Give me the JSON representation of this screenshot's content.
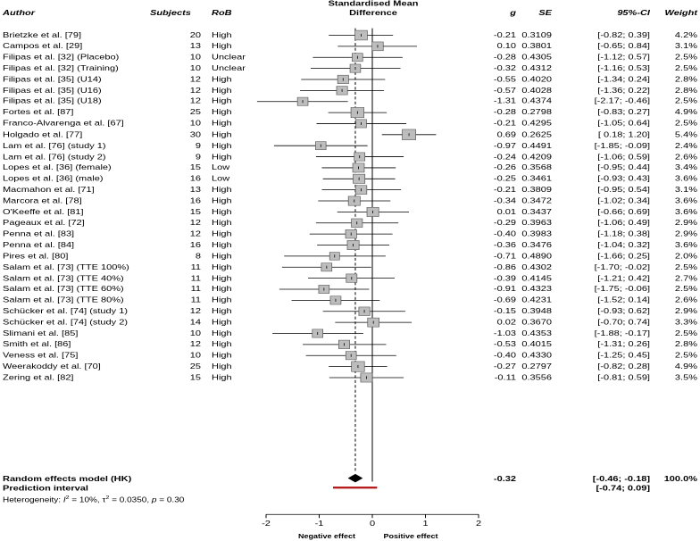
{
  "headers": {
    "author": "Author",
    "subjects": "Subjects",
    "rob": "RoB",
    "smd_line1": "Standardised Mean",
    "smd_line2": "Difference",
    "g": "g",
    "se": "SE",
    "ci": "95%-CI",
    "weight": "Weight"
  },
  "studies": [
    {
      "author": "Brietzke et al. [79]",
      "subjects": "20",
      "rob": "High",
      "g": "-0.21",
      "se": "0.3109",
      "ci": "[-0.82; 0.39]",
      "weight": "4.2%"
    },
    {
      "author": "Campos et al. [29]",
      "subjects": "13",
      "rob": "High",
      "g": "0.10",
      "se": "0.3801",
      "ci": "[-0.65; 0.84]",
      "weight": "3.1%"
    },
    {
      "author": "Filipas et al. [32] (Placebo)",
      "subjects": "10",
      "rob": "Unclear",
      "g": "-0.28",
      "se": "0.4305",
      "ci": "[-1.12; 0.57]",
      "weight": "2.5%"
    },
    {
      "author": "Filipas et al. [32] (Training)",
      "subjects": "10",
      "rob": "Unclear",
      "g": "-0.32",
      "se": "0.4312",
      "ci": "[-1.16; 0.53]",
      "weight": "2.5%"
    },
    {
      "author": "Filipas et al. [35] (U14)",
      "subjects": "12",
      "rob": "High",
      "g": "-0.55",
      "se": "0.4020",
      "ci": "[-1.34; 0.24]",
      "weight": "2.8%"
    },
    {
      "author": "Filipas et al. [35] (U16)",
      "subjects": "12",
      "rob": "High",
      "g": "-0.57",
      "se": "0.4028",
      "ci": "[-1.36; 0.22]",
      "weight": "2.8%"
    },
    {
      "author": "Filipas et al. [35] (U18)",
      "subjects": "12",
      "rob": "High",
      "g": "-1.31",
      "se": "0.4374",
      "ci": "[-2.17; -0.46]",
      "weight": "2.5%"
    },
    {
      "author": "Fortes et al. [87]",
      "subjects": "25",
      "rob": "High",
      "g": "-0.28",
      "se": "0.2798",
      "ci": "[-0.83; 0.27]",
      "weight": "4.9%"
    },
    {
      "author": "Franco-Alvarenga et al. [67]",
      "subjects": "10",
      "rob": "High",
      "g": "-0.21",
      "se": "0.4295",
      "ci": "[-1.05; 0.64]",
      "weight": "2.5%"
    },
    {
      "author": "Holgado et al. [77]",
      "subjects": "30",
      "rob": "High",
      "g": "0.69",
      "se": "0.2625",
      "ci": "[ 0.18; 1.20]",
      "weight": "5.4%"
    },
    {
      "author": "Lam et al. [76] (study 1)",
      "subjects": "9",
      "rob": "High",
      "g": "-0.97",
      "se": "0.4491",
      "ci": "[-1.85; -0.09]",
      "weight": "2.4%"
    },
    {
      "author": "Lam et al. [76] (study 2)",
      "subjects": "9",
      "rob": "High",
      "g": "-0.24",
      "se": "0.4209",
      "ci": "[-1.06; 0.59]",
      "weight": "2.6%"
    },
    {
      "author": "Lopes et al. [36] (female)",
      "subjects": "15",
      "rob": "Low",
      "g": "-0.26",
      "se": "0.3568",
      "ci": "[-0.95; 0.44]",
      "weight": "3.4%"
    },
    {
      "author": "Lopes et al. [36] (male)",
      "subjects": "16",
      "rob": "Low",
      "g": "-0.25",
      "se": "0.3461",
      "ci": "[-0.93; 0.43]",
      "weight": "3.6%"
    },
    {
      "author": "Macmahon et al. [71]",
      "subjects": "13",
      "rob": "High",
      "g": "-0.21",
      "se": "0.3809",
      "ci": "[-0.95; 0.54]",
      "weight": "3.1%"
    },
    {
      "author": "Marcora et al. [78]",
      "subjects": "16",
      "rob": "High",
      "g": "-0.34",
      "se": "0.3472",
      "ci": "[-1.02; 0.34]",
      "weight": "3.6%"
    },
    {
      "author": "O'Keeffe et al. [81]",
      "subjects": "15",
      "rob": "High",
      "g": "0.01",
      "se": "0.3437",
      "ci": "[-0.66; 0.69]",
      "weight": "3.6%"
    },
    {
      "author": "Pageaux et al. [72]",
      "subjects": "12",
      "rob": "High",
      "g": "-0.29",
      "se": "0.3963",
      "ci": "[-1.06; 0.49]",
      "weight": "2.9%"
    },
    {
      "author": "Penna et al. [83]",
      "subjects": "12",
      "rob": "High",
      "g": "-0.40",
      "se": "0.3983",
      "ci": "[-1.18; 0.38]",
      "weight": "2.9%"
    },
    {
      "author": "Penna et al. [84]",
      "subjects": "16",
      "rob": "High",
      "g": "-0.36",
      "se": "0.3476",
      "ci": "[-1.04; 0.32]",
      "weight": "3.6%"
    },
    {
      "author": "Pires et al. [80]",
      "subjects": "8",
      "rob": "High",
      "g": "-0.71",
      "se": "0.4890",
      "ci": "[-1.66; 0.25]",
      "weight": "2.0%"
    },
    {
      "author": "Salam et al. [73] (TTE 100%)",
      "subjects": "11",
      "rob": "High",
      "g": "-0.86",
      "se": "0.4302",
      "ci": "[-1.70; -0.02]",
      "weight": "2.5%"
    },
    {
      "author": "Salam et al. [73] (TTE 40%)",
      "subjects": "11",
      "rob": "High",
      "g": "-0.39",
      "se": "0.4145",
      "ci": "[-1.21; 0.42]",
      "weight": "2.7%"
    },
    {
      "author": "Salam et al. [73] (TTE 60%)",
      "subjects": "11",
      "rob": "High",
      "g": "-0.91",
      "se": "0.4323",
      "ci": "[-1.75; -0.06]",
      "weight": "2.5%"
    },
    {
      "author": "Salam et al. [73] (TTE 80%)",
      "subjects": "11",
      "rob": "High",
      "g": "-0.69",
      "se": "0.4231",
      "ci": "[-1.52; 0.14]",
      "weight": "2.6%"
    },
    {
      "author": "Schücker et al. [74] (study 1)",
      "subjects": "12",
      "rob": "High",
      "g": "-0.15",
      "se": "0.3948",
      "ci": "[-0.93; 0.62]",
      "weight": "2.9%"
    },
    {
      "author": "Schücker et al. [74] (study 2)",
      "subjects": "14",
      "rob": "High",
      "g": "0.02",
      "se": "0.3670",
      "ci": "[-0.70; 0.74]",
      "weight": "3.3%"
    },
    {
      "author": "Slimani et al. [85]",
      "subjects": "10",
      "rob": "High",
      "g": "-1.03",
      "se": "0.4353",
      "ci": "[-1.88; -0.17]",
      "weight": "2.5%"
    },
    {
      "author": "Smith et al. [86]",
      "subjects": "12",
      "rob": "High",
      "g": "-0.53",
      "se": "0.4015",
      "ci": "[-1.31; 0.26]",
      "weight": "2.8%"
    },
    {
      "author": "Veness et al. [75]",
      "subjects": "10",
      "rob": "High",
      "g": "-0.40",
      "se": "0.4330",
      "ci": "[-1.25; 0.45]",
      "weight": "2.5%"
    },
    {
      "author": "Weerakoddy et al. [70]",
      "subjects": "25",
      "rob": "High",
      "g": "-0.27",
      "se": "0.2797",
      "ci": "[-0.82; 0.28]",
      "weight": "4.9%"
    },
    {
      "author": "Zering et al. [82]",
      "subjects": "15",
      "rob": "High",
      "g": "-0.11",
      "se": "0.3556",
      "ci": "[-0.81; 0.59]",
      "weight": "3.5%"
    }
  ],
  "summary": {
    "label": "Random effects model (HK)",
    "g": "-0.32",
    "ci": "[-0.46; -0.18]",
    "weight": "100.0%"
  },
  "prediction": {
    "label": "Prediction interval",
    "ci": "[-0.74; 0.09]"
  },
  "heterogeneity": {
    "prefix": "Heterogeneity: ",
    "i2_symbol": "I",
    "i2_value": " = 10%, ",
    "tau_symbol": "τ",
    "tau_value": " = 0.0350, ",
    "p_symbol": "p",
    "p_value": " = 0.30"
  },
  "axis_labels": {
    "negative": "Negative effect",
    "positive": "Positive effect"
  },
  "chart_data": {
    "type": "forest",
    "title": "Standardised Mean Difference",
    "xlim": [
      -2,
      2
    ],
    "ticks": [
      -2,
      -1,
      0,
      1,
      2
    ],
    "tick_labels": [
      "-2",
      "-1",
      "0",
      "1",
      "2"
    ],
    "estimates": [
      -0.21,
      0.1,
      -0.28,
      -0.32,
      -0.55,
      -0.57,
      -1.31,
      -0.28,
      -0.21,
      0.69,
      -0.97,
      -0.24,
      -0.26,
      -0.25,
      -0.21,
      -0.34,
      0.01,
      -0.29,
      -0.4,
      -0.36,
      -0.71,
      -0.86,
      -0.39,
      -0.91,
      -0.69,
      -0.15,
      0.02,
      -1.03,
      -0.53,
      -0.4,
      -0.27,
      -0.11
    ],
    "ci_lower": [
      -0.82,
      -0.65,
      -1.12,
      -1.16,
      -1.34,
      -1.36,
      -2.17,
      -0.83,
      -1.05,
      0.18,
      -1.85,
      -1.06,
      -0.95,
      -0.93,
      -0.95,
      -1.02,
      -0.66,
      -1.06,
      -1.18,
      -1.04,
      -1.66,
      -1.7,
      -1.21,
      -1.75,
      -1.52,
      -0.93,
      -0.7,
      -1.88,
      -1.31,
      -1.25,
      -0.82,
      -0.81
    ],
    "ci_upper": [
      0.39,
      0.84,
      0.57,
      0.53,
      0.24,
      0.22,
      -0.46,
      0.27,
      0.64,
      1.2,
      -0.09,
      0.59,
      0.44,
      0.43,
      0.54,
      0.34,
      0.69,
      0.49,
      0.38,
      0.32,
      0.25,
      -0.02,
      0.42,
      -0.06,
      0.14,
      0.62,
      0.74,
      -0.17,
      0.26,
      0.45,
      0.28,
      0.59
    ],
    "weights": [
      4.2,
      3.1,
      2.5,
      2.5,
      2.8,
      2.8,
      2.5,
      4.9,
      2.5,
      5.4,
      2.4,
      2.6,
      3.4,
      3.6,
      3.1,
      3.6,
      3.6,
      2.9,
      2.9,
      3.6,
      2.0,
      2.5,
      2.7,
      2.5,
      2.6,
      2.9,
      3.3,
      2.5,
      2.8,
      2.5,
      4.9,
      3.5
    ],
    "pooled": {
      "estimate": -0.32,
      "lower": -0.46,
      "upper": -0.18
    },
    "prediction_interval": {
      "lower": -0.74,
      "upper": 0.09
    },
    "colors": {
      "box": "#bdbdbd",
      "diamond": "#000000",
      "prediction": "#b71c1c"
    }
  }
}
